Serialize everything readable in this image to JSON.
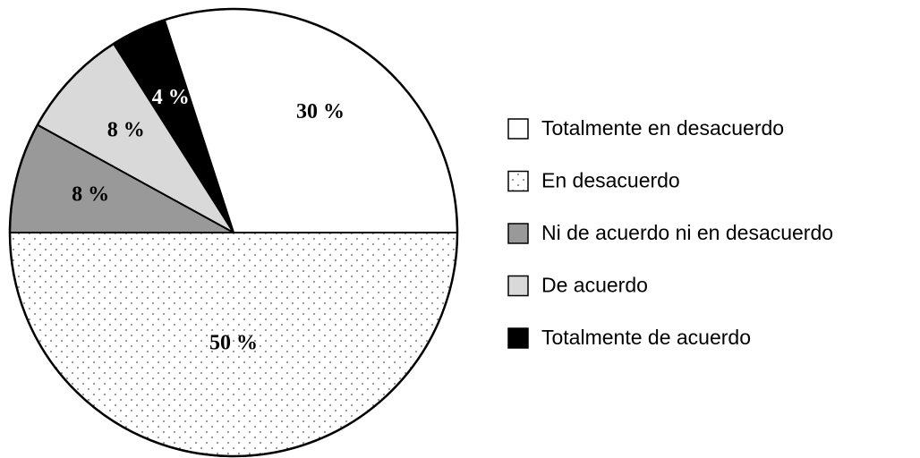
{
  "chart_data": {
    "type": "pie",
    "categories": [
      "Totalmente en desacuerdo",
      "En desacuerdo",
      "Ni de acuerdo ni en desacuerdo",
      "De acuerdo",
      "Totalmente de acuerdo"
    ],
    "values": [
      30,
      50,
      8,
      8,
      4
    ],
    "value_labels": [
      "30 %",
      "50 %",
      "8 %",
      "8 %",
      "4 %"
    ],
    "colors": [
      "#ffffff",
      "#ffffff",
      "#999999",
      "#d9d9d9",
      "#000000"
    ],
    "hatch": [
      null,
      "dots",
      null,
      null,
      null
    ],
    "startangle": 108,
    "counterclock": false,
    "legend": "right"
  }
}
